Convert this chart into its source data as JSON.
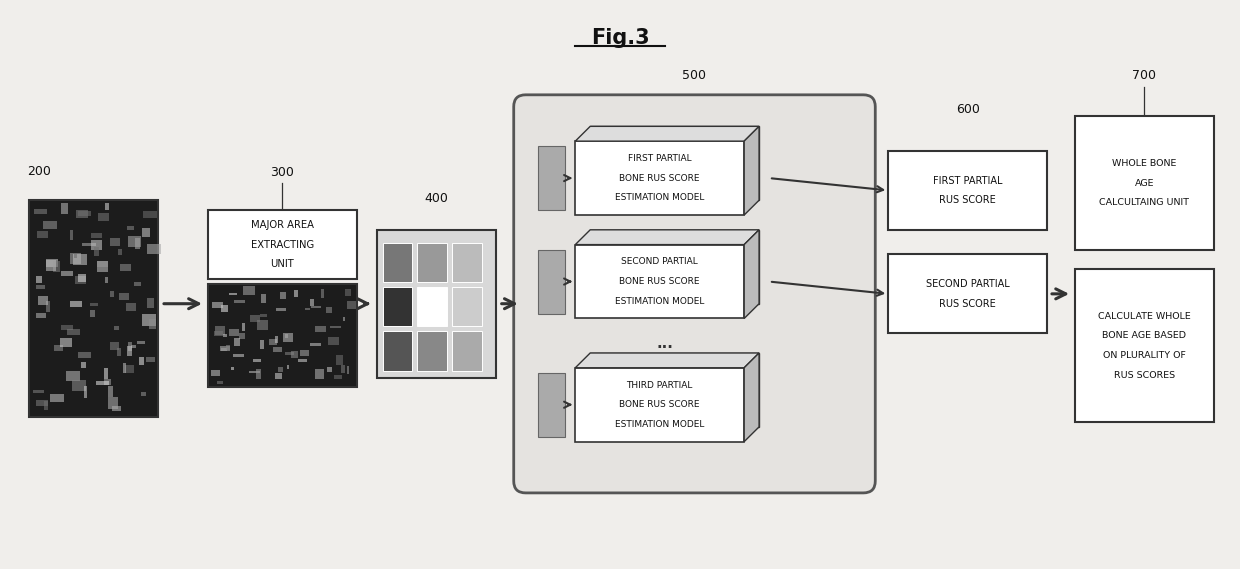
{
  "title": "Fig.3",
  "bg_color": "#f0eeeb",
  "box_color": "#ffffff",
  "box_edge": "#333333",
  "arrow_color": "#333333",
  "label_200": "200",
  "label_300": "300",
  "label_400": "400",
  "label_500": "500",
  "label_600": "600",
  "label_700": "700",
  "box_300_lines": [
    "MAJOR AREA",
    "EXTRACTING",
    "UNIT"
  ],
  "box_600_top_lines": [
    "FIRST PARTIAL",
    "RUS SCORE"
  ],
  "box_600_bot_lines": [
    "SECOND PARTIAL",
    "RUS SCORE"
  ],
  "model_1_lines": [
    "FIRST PARTIAL",
    "BONE RUS SCORE",
    "ESTIMATION MODEL"
  ],
  "model_2_lines": [
    "SECOND PARTIAL",
    "BONE RUS SCORE",
    "ESTIMATION MODEL"
  ],
  "model_3_lines": [
    "THIRD PARTIAL",
    "BONE RUS SCORE",
    "ESTIMATION MODEL"
  ],
  "box_700_top_lines": [
    "WHOLE BONE",
    "AGE",
    "CALCULTAING UNIT"
  ],
  "box_700_bot_lines": [
    "CALCULATE WHOLE",
    "BONE AGE BASED",
    "ON PLURALITY OF",
    "RUS SCORES"
  ],
  "dots": "...",
  "font_size_title": 15,
  "font_size_label": 7.5,
  "font_size_number": 9,
  "grid_colors": [
    "#555555",
    "#888888",
    "#aaaaaa",
    "#333333",
    "#ffffff",
    "#cccccc",
    "#777777",
    "#999999",
    "#bbbbbb",
    "#444444",
    "#666666",
    "#eeeeee"
  ]
}
